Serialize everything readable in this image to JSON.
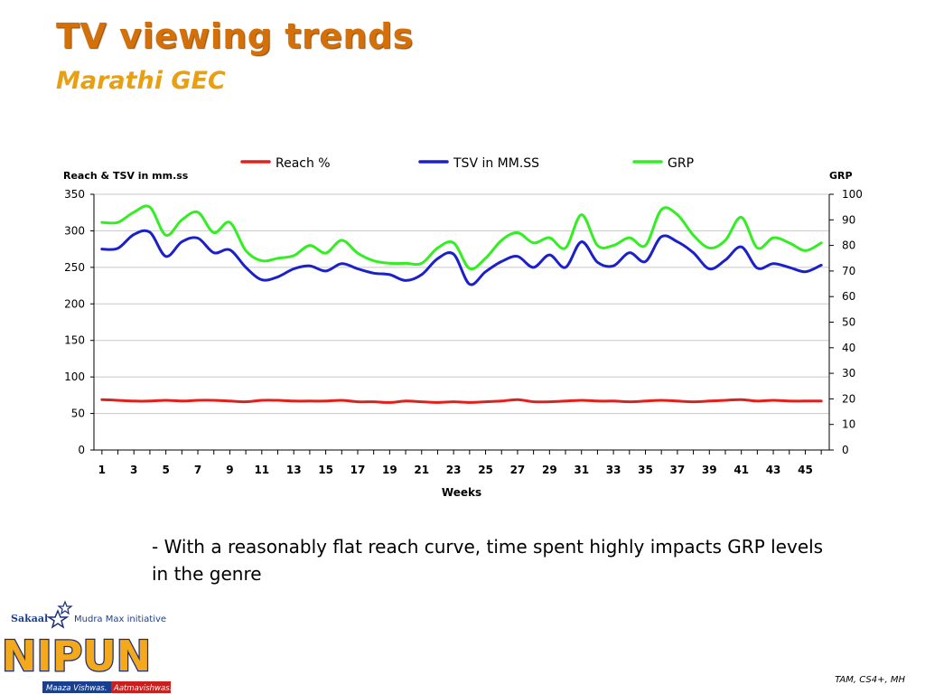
{
  "slide": {
    "title": "TV viewing trends",
    "subtitle": "Marathi GEC",
    "comment": "- With a reasonably flat reach curve, time spent highly impacts GRP levels in the genre",
    "source": "TAM, CS4+, MH"
  },
  "logo": {
    "brand": "Sakaal",
    "tagline": "Mudra Max initiative",
    "name": "NIPUN",
    "motto_left": "Maaza Vishwas.",
    "motto_right": "Aatmavishwas!"
  },
  "colors": {
    "reach": "#e0201c",
    "tsv": "#1b20c8",
    "grp": "#33ee22"
  },
  "chart_data": {
    "type": "line",
    "xlabel": "Weeks",
    "ylabel_left": "Reach & TSV in mm.ss",
    "ylabel_right": "GRP",
    "ylim_left": [
      0,
      350
    ],
    "ylim_right": [
      0,
      100
    ],
    "yticks_left": [
      0,
      50,
      100,
      150,
      200,
      250,
      300,
      350
    ],
    "yticks_right": [
      0,
      10,
      20,
      30,
      40,
      50,
      60,
      70,
      80,
      90,
      100
    ],
    "x_ticks": [
      1,
      3,
      5,
      7,
      9,
      11,
      13,
      15,
      17,
      19,
      21,
      23,
      25,
      27,
      29,
      31,
      33,
      35,
      37,
      39,
      41,
      43,
      45
    ],
    "legend_position": "top",
    "grid": "horizontal",
    "x": [
      1,
      2,
      3,
      4,
      5,
      6,
      7,
      8,
      9,
      10,
      11,
      12,
      13,
      14,
      15,
      16,
      17,
      18,
      19,
      20,
      21,
      22,
      23,
      24,
      25,
      26,
      27,
      28,
      29,
      30,
      31,
      32,
      33,
      34,
      35,
      36,
      37,
      38,
      39,
      40,
      41,
      42,
      43,
      44,
      45,
      46
    ],
    "series": [
      {
        "name": "Reach %",
        "axis": "left",
        "color_key": "reach",
        "values": [
          69,
          68,
          67,
          67,
          68,
          67,
          68,
          68,
          67,
          66,
          68,
          68,
          67,
          67,
          67,
          68,
          66,
          66,
          65,
          67,
          66,
          65,
          66,
          65,
          66,
          67,
          69,
          66,
          66,
          67,
          68,
          67,
          67,
          66,
          67,
          68,
          67,
          66,
          67,
          68,
          69,
          67,
          68,
          67,
          67,
          67
        ]
      },
      {
        "name": "TSV in MM.SS",
        "axis": "left",
        "color_key": "tsv",
        "values": [
          275,
          276,
          295,
          298,
          265,
          285,
          290,
          270,
          274,
          250,
          233,
          237,
          248,
          252,
          245,
          255,
          248,
          242,
          240,
          232,
          240,
          262,
          268,
          227,
          244,
          258,
          265,
          250,
          267,
          250,
          285,
          257,
          252,
          270,
          258,
          292,
          285,
          270,
          248,
          260,
          278,
          249,
          255,
          250,
          244,
          253
        ]
      },
      {
        "name": "GRP",
        "axis": "right",
        "color_key": "grp",
        "values": [
          89,
          89,
          93,
          95,
          84,
          90,
          93,
          85,
          89,
          78,
          74,
          75,
          76,
          80,
          77,
          82,
          77,
          74,
          73,
          73,
          73,
          79,
          81,
          71,
          75,
          82,
          85,
          81,
          83,
          79,
          92,
          80,
          80,
          83,
          80,
          94,
          92,
          84,
          79,
          82,
          91,
          79,
          83,
          81,
          78,
          81
        ]
      }
    ]
  }
}
